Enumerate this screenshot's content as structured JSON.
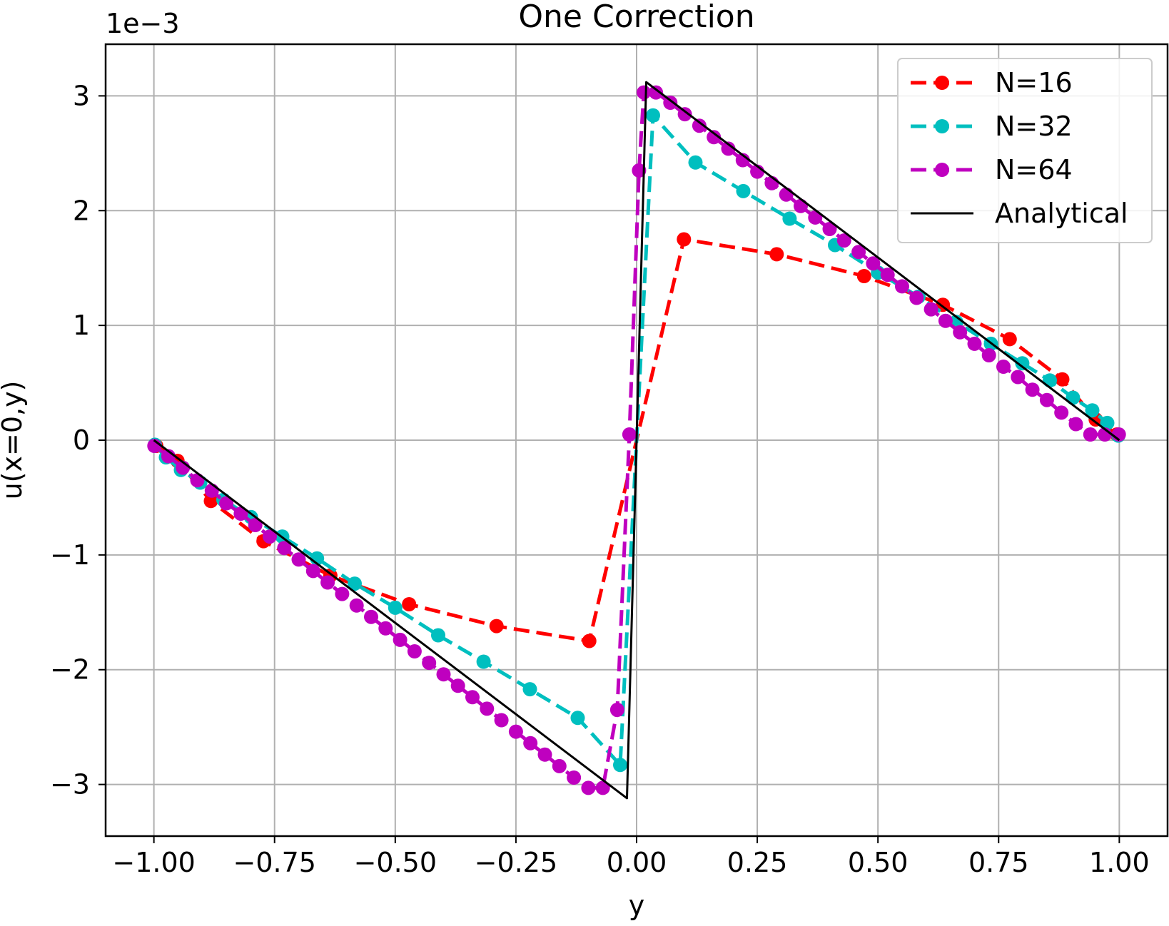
{
  "chart_data": {
    "type": "line",
    "title": "One Correction",
    "xlabel": "y",
    "ylabel": "u(x=0,y)",
    "offset_text": "1e−3",
    "xlim": [
      -1.1,
      1.1
    ],
    "ylim": [
      -3.45,
      3.45
    ],
    "y_scale_note": "values in units of 1e-3",
    "xticks": [
      -1.0,
      -0.75,
      -0.5,
      -0.25,
      0.0,
      0.25,
      0.5,
      0.75,
      1.0
    ],
    "xtick_labels": [
      "−1.00",
      "−0.75",
      "−0.50",
      "−0.25",
      "0.00",
      "0.25",
      "0.50",
      "0.75",
      "1.00"
    ],
    "yticks": [
      -3,
      -2,
      -1,
      0,
      1,
      2,
      3
    ],
    "ytick_labels": [
      "−3",
      "−2",
      "−1",
      "0",
      "1",
      "2",
      "3"
    ],
    "grid": true,
    "legend_position": "top-right",
    "series": [
      {
        "name": "N=16",
        "color": "#ff0000",
        "style": "dashed-markers",
        "x": [
          -0.9952,
          -0.9511,
          -0.8819,
          -0.773,
          -0.6344,
          -0.4714,
          -0.2903,
          -0.098,
          0.098,
          0.2903,
          0.4714,
          0.6344,
          0.773,
          0.8819,
          0.9511,
          0.9952
        ],
        "y": [
          -0.05,
          -0.18,
          -0.53,
          -0.88,
          -1.18,
          -1.43,
          -1.62,
          -1.75,
          1.75,
          1.62,
          1.43,
          1.18,
          0.88,
          0.53,
          0.18,
          0.05
        ]
      },
      {
        "name": "N=32",
        "color": "#00bfbf",
        "style": "dashed-markers",
        "x": [
          -0.998,
          -0.975,
          -0.944,
          -0.904,
          -0.856,
          -0.799,
          -0.734,
          -0.662,
          -0.584,
          -0.5,
          -0.411,
          -0.317,
          -0.221,
          -0.122,
          -0.034,
          0.034,
          0.122,
          0.221,
          0.317,
          0.411,
          0.5,
          0.584,
          0.662,
          0.734,
          0.799,
          0.856,
          0.904,
          0.944,
          0.975,
          0.998
        ],
        "y": [
          -0.04,
          -0.15,
          -0.26,
          -0.37,
          -0.52,
          -0.67,
          -0.84,
          -1.03,
          -1.25,
          -1.46,
          -1.7,
          -1.93,
          -2.17,
          -2.42,
          -2.83,
          2.83,
          2.42,
          2.17,
          1.93,
          1.7,
          1.46,
          1.25,
          1.03,
          0.84,
          0.67,
          0.52,
          0.37,
          0.26,
          0.15,
          0.04
        ]
      },
      {
        "name": "N=64",
        "color": "#bf00bf",
        "style": "dashed-markers",
        "x": [
          -0.999,
          -0.97,
          -0.94,
          -0.91,
          -0.88,
          -0.85,
          -0.82,
          -0.79,
          -0.76,
          -0.73,
          -0.7,
          -0.67,
          -0.64,
          -0.61,
          -0.58,
          -0.55,
          -0.52,
          -0.49,
          -0.46,
          -0.43,
          -0.4,
          -0.37,
          -0.34,
          -0.31,
          -0.28,
          -0.25,
          -0.22,
          -0.19,
          -0.16,
          -0.13,
          -0.1,
          -0.07,
          -0.04,
          -0.015,
          0.005,
          0.015,
          0.04,
          0.07,
          0.1,
          0.13,
          0.16,
          0.19,
          0.22,
          0.25,
          0.28,
          0.31,
          0.34,
          0.37,
          0.4,
          0.43,
          0.46,
          0.49,
          0.52,
          0.55,
          0.58,
          0.61,
          0.64,
          0.67,
          0.7,
          0.73,
          0.76,
          0.79,
          0.82,
          0.85,
          0.88,
          0.91,
          0.94,
          0.97,
          0.999
        ],
        "y": [
          -0.05,
          -0.14,
          -0.24,
          -0.35,
          -0.44,
          -0.55,
          -0.64,
          -0.74,
          -0.84,
          -0.94,
          -1.04,
          -1.14,
          -1.24,
          -1.34,
          -1.44,
          -1.54,
          -1.64,
          -1.74,
          -1.84,
          -1.94,
          -2.04,
          -2.14,
          -2.24,
          -2.34,
          -2.44,
          -2.54,
          -2.64,
          -2.74,
          -2.84,
          -2.94,
          -3.03,
          -3.03,
          -2.35,
          0.05,
          2.35,
          3.03,
          3.03,
          2.94,
          2.84,
          2.74,
          2.64,
          2.54,
          2.44,
          2.34,
          2.24,
          2.14,
          2.04,
          1.94,
          1.84,
          1.74,
          1.64,
          1.54,
          1.44,
          1.34,
          1.24,
          1.14,
          1.04,
          0.94,
          0.84,
          0.74,
          0.64,
          0.55,
          0.44,
          0.35,
          0.24,
          0.14,
          0.05,
          0.05,
          0.05
        ]
      },
      {
        "name": "Analytical",
        "color": "#000000",
        "style": "solid",
        "x": [
          -1.0,
          -0.02,
          0.02,
          1.0
        ],
        "y": [
          0.0,
          -3.12,
          3.12,
          0.0
        ]
      }
    ]
  }
}
